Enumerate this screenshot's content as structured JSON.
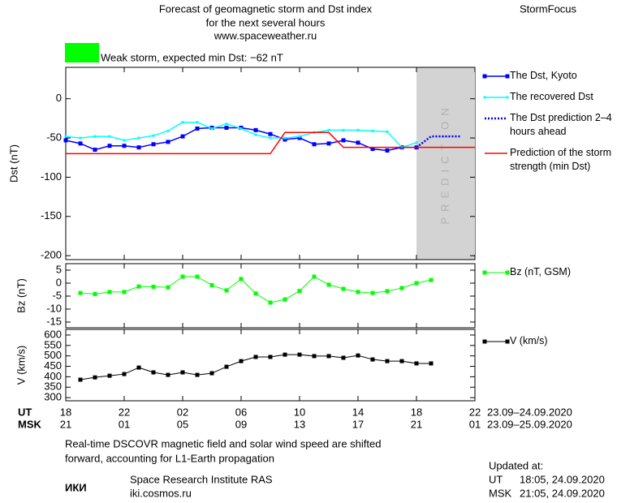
{
  "header": {
    "title": [
      "Forecast of geomagnetic storm and Dst index",
      "for the next several hours",
      "www.spaceweather.ru"
    ],
    "brand": "StormFocus",
    "status": "Weak storm, expected min Dst: −62 nT",
    "status_color": "#00ff00"
  },
  "chart_data": [
    {
      "type": "line",
      "ylabel": "Dst (nT)",
      "xlim": [
        0,
        28
      ],
      "ylim": [
        -205,
        40
      ],
      "yticks": [
        0,
        -50,
        -100,
        -150,
        -200
      ],
      "prediction_band": {
        "label": "PREDICTION",
        "xrange": [
          24,
          28
        ],
        "color": "#d3d3d3"
      },
      "series": [
        {
          "name": "The Dst, Kyoto",
          "color": "#0000ff",
          "marker": "square",
          "width": 1.5,
          "x": [
            0,
            1,
            2,
            3,
            4,
            5,
            6,
            7,
            8,
            9,
            10,
            11,
            12,
            13,
            14,
            15,
            16,
            17,
            18,
            19,
            20,
            21,
            22,
            23,
            24
          ],
          "values": [
            -53,
            -57,
            -65,
            -60,
            -60,
            -62,
            -58,
            -55,
            -48,
            -38,
            -37,
            -37,
            -37,
            -40,
            -45,
            -52,
            -50,
            -58,
            -57,
            -53,
            -56,
            -64,
            -66,
            -62,
            -62
          ]
        },
        {
          "name": "The recovered Dst",
          "color": "#00ffff",
          "marker": "small-square",
          "width": 1.5,
          "x": [
            0,
            1,
            2,
            3,
            4,
            5,
            6,
            7,
            8,
            9,
            10,
            11,
            12,
            13,
            14,
            15,
            16,
            17,
            18,
            19,
            20,
            21,
            22,
            23,
            24
          ],
          "values": [
            -48,
            -50,
            -48,
            -48,
            -53,
            -50,
            -47,
            -41,
            -30,
            -30,
            -38,
            -32,
            -38,
            -46,
            -50,
            -50,
            -48,
            -43,
            -40,
            -40,
            -40,
            -41,
            -42,
            -62,
            -56
          ]
        },
        {
          "name": "The Dst prediction 2–4 hours ahead",
          "color": "#0000ff",
          "dash": "dotted",
          "width": 2.5,
          "x": [
            24,
            25,
            27
          ],
          "values": [
            -62,
            -48,
            -48
          ]
        },
        {
          "name": "Prediction of the storm strength (min Dst)",
          "color": "#ff0000",
          "width": 1.5,
          "x": [
            0,
            14,
            15,
            18,
            19,
            28
          ],
          "values": [
            -70,
            -70,
            -43,
            -43,
            -62,
            -62
          ]
        }
      ]
    },
    {
      "type": "line",
      "ylabel": "Bz (nT)",
      "xlim": [
        0,
        28
      ],
      "ylim": [
        -17.2,
        7.5
      ],
      "yticks": [
        5,
        0,
        -5,
        -10,
        -15
      ],
      "series": [
        {
          "name": "Bz (nT, GSM)",
          "color": "#00ff00",
          "marker": "square",
          "width": 1,
          "x": [
            1,
            2,
            3,
            4,
            5,
            6,
            7,
            8,
            9,
            10,
            11,
            12,
            13,
            14,
            15,
            16,
            17,
            18,
            19,
            20,
            21,
            22,
            23,
            24,
            25
          ],
          "values": [
            -3.8,
            -4.2,
            -3.4,
            -3.4,
            -1.3,
            -1.4,
            -1.6,
            2.5,
            2.5,
            -0.8,
            -2.8,
            1.6,
            -4,
            -7.5,
            -6.3,
            -3,
            2.5,
            -0.6,
            -2.2,
            -3.4,
            -3.8,
            -3.1,
            -1.9,
            0,
            1.2
          ]
        }
      ]
    },
    {
      "type": "line",
      "ylabel": "V (km/s)",
      "xlim": [
        0,
        28
      ],
      "ylim": [
        285,
        627
      ],
      "yticks": [
        300,
        350,
        400,
        450,
        500,
        550,
        600
      ],
      "series": [
        {
          "name": "V (km/s)",
          "color": "#000000",
          "marker": "square",
          "width": 1,
          "x": [
            1,
            2,
            3,
            4,
            5,
            6,
            7,
            8,
            9,
            10,
            11,
            12,
            13,
            14,
            15,
            16,
            17,
            18,
            19,
            20,
            21,
            22,
            23,
            24,
            25
          ],
          "values": [
            386,
            397,
            405,
            413,
            444,
            421,
            409,
            421,
            409,
            417,
            448,
            475,
            495,
            495,
            506,
            506,
            499,
            499,
            491,
            502,
            483,
            475,
            475,
            464,
            464
          ]
        }
      ]
    }
  ],
  "time_axis": {
    "ut_label": "UT",
    "msk_label": "MSK",
    "ut_ticks": [
      {
        "value": 0,
        "label": "18"
      },
      {
        "value": 4,
        "label": "22"
      },
      {
        "value": 8,
        "label": "02"
      },
      {
        "value": 12,
        "label": "06"
      },
      {
        "value": 16,
        "label": "10"
      },
      {
        "value": 20,
        "label": "14"
      },
      {
        "value": 24,
        "label": "18"
      },
      {
        "value": 28,
        "label": "22"
      }
    ],
    "msk_ticks": [
      {
        "value": 0,
        "label": "21"
      },
      {
        "value": 4,
        "label": "01"
      },
      {
        "value": 8,
        "label": "05"
      },
      {
        "value": 12,
        "label": "09"
      },
      {
        "value": 16,
        "label": "13"
      },
      {
        "value": 20,
        "label": "17"
      },
      {
        "value": 24,
        "label": "21"
      },
      {
        "value": 28,
        "label": "01"
      }
    ],
    "ut_range": "23.09–24.09.2020",
    "msk_range": "23.09–25.09.2020"
  },
  "footer": {
    "note": [
      "Real-time DSCOVR magnetic field and solar wind speed are shifted",
      "forward, accounting for L1-Earth propagation"
    ],
    "logo": "ИКИ",
    "institute": "Space Research Institute RAS",
    "site": "iki.cosmos.ru",
    "updated_label": "Updated at:",
    "updated": [
      {
        "zone": "UT",
        "time": "18:05, 24.09.2020"
      },
      {
        "zone": "MSK",
        "time": "21:05, 24.09.2020"
      }
    ]
  }
}
